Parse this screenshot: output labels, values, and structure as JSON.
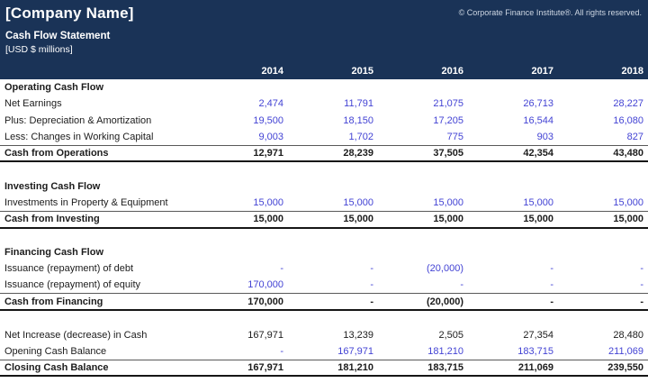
{
  "header": {
    "company_name": "[Company Name]",
    "copyright": "© Corporate Finance Institute®. All rights reserved.",
    "title": "Cash Flow Statement",
    "units": "[USD $ millions]",
    "years": [
      "2014",
      "2015",
      "2016",
      "2017",
      "2018"
    ]
  },
  "colors": {
    "header_bg": "#1a3357",
    "input_value_blue": "#4343d4",
    "total_text_black": "#1c1c1c"
  },
  "table": {
    "rows": [
      {
        "type": "section",
        "label": "Operating Cash Flow"
      },
      {
        "type": "input",
        "label": "Net Earnings",
        "values": [
          "2,474",
          "11,791",
          "21,075",
          "26,713",
          "28,227"
        ]
      },
      {
        "type": "input",
        "label": "Plus: Depreciation & Amortization",
        "values": [
          "19,500",
          "18,150",
          "17,205",
          "16,544",
          "16,080"
        ]
      },
      {
        "type": "input",
        "label": "Less: Changes in Working Capital",
        "values": [
          "9,003",
          "1,702",
          "775",
          "903",
          "827"
        ]
      },
      {
        "type": "total",
        "label": "Cash from Operations",
        "values": [
          "12,971",
          "28,239",
          "37,505",
          "42,354",
          "43,480"
        ]
      },
      {
        "type": "blank"
      },
      {
        "type": "section",
        "label": "Investing Cash Flow"
      },
      {
        "type": "input",
        "label": "Investments in Property & Equipment",
        "values": [
          "15,000",
          "15,000",
          "15,000",
          "15,000",
          "15,000"
        ]
      },
      {
        "type": "total",
        "label": "Cash from Investing",
        "values": [
          "15,000",
          "15,000",
          "15,000",
          "15,000",
          "15,000"
        ]
      },
      {
        "type": "blank"
      },
      {
        "type": "section",
        "label": "Financing Cash Flow"
      },
      {
        "type": "input",
        "label": "Issuance (repayment) of debt",
        "values": [
          "-",
          "-",
          "(20,000)",
          "-",
          "-"
        ]
      },
      {
        "type": "input",
        "label": "Issuance (repayment) of equity",
        "values": [
          "170,000",
          "-",
          "-",
          "-",
          "-"
        ]
      },
      {
        "type": "total",
        "label": "Cash from Financing",
        "values": [
          "170,000",
          "-",
          "(20,000)",
          "-",
          "-"
        ]
      },
      {
        "type": "blank"
      },
      {
        "type": "computed",
        "label": "Net Increase (decrease) in Cash",
        "values": [
          "167,971",
          "13,239",
          "2,505",
          "27,354",
          "28,480"
        ]
      },
      {
        "type": "input",
        "label": "Opening Cash Balance",
        "values": [
          "-",
          "167,971",
          "181,210",
          "183,715",
          "211,069"
        ]
      },
      {
        "type": "total",
        "label": "Closing Cash Balance",
        "values": [
          "167,971",
          "181,210",
          "183,715",
          "211,069",
          "239,550"
        ]
      }
    ]
  }
}
